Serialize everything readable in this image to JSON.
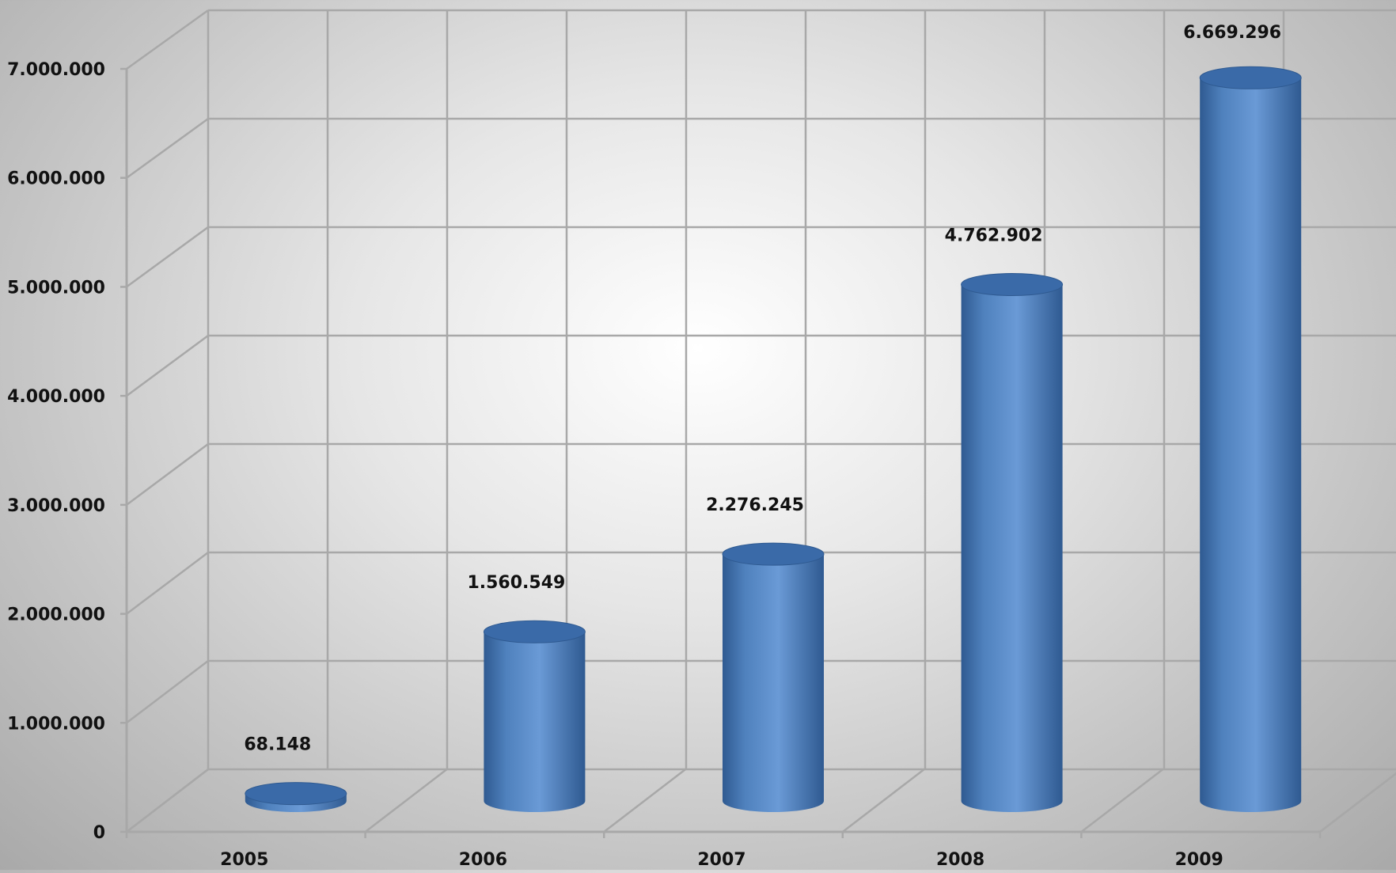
{
  "chart_data": {
    "type": "bar",
    "style": "3d-cylinder",
    "categories": [
      "2005",
      "2006",
      "2007",
      "2008",
      "2009"
    ],
    "values": [
      68148,
      1560549,
      2276245,
      4762902,
      6669296
    ],
    "data_labels": [
      "68.148",
      "1.560.549",
      "2.276.245",
      "4.762.902",
      "6.669.296"
    ],
    "y_ticks": [
      0,
      1000000,
      2000000,
      3000000,
      4000000,
      5000000,
      6000000,
      7000000
    ],
    "y_tick_labels": [
      "0",
      "1.000.000",
      "2.000.000",
      "3.000.000",
      "4.000.000",
      "5.000.000",
      "6.000.000",
      "7.000.000"
    ],
    "ylim": [
      0,
      7000000
    ],
    "grid": true,
    "legend": "none",
    "title": "",
    "xlabel": "",
    "ylabel": "",
    "colors": {
      "bar_body": "#4f81bd",
      "bar_highlight": "#6a9ad6",
      "bar_shade": "#2f5a91",
      "bar_top": "#3a6aa8",
      "gridline": "#a8a8a8",
      "text": "#111111"
    }
  }
}
